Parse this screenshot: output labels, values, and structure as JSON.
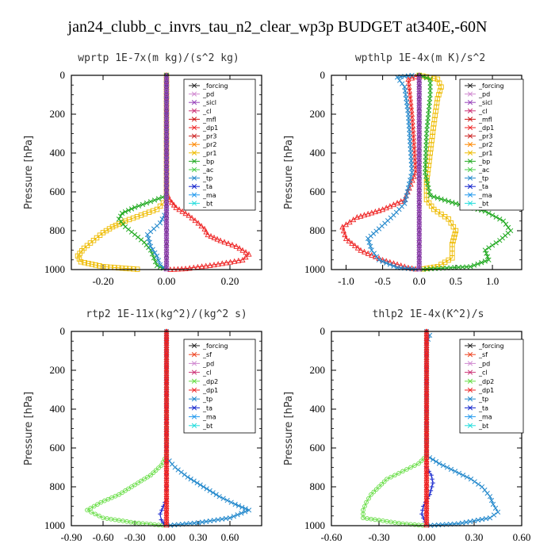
{
  "title": "jan24_clubb_c_invrs_tau_n2_clear_wp3p  BUDGET at340E,-60N",
  "chart_data": [
    {
      "type": "line",
      "title": "wprtp   1E-7x(m kg)/(s^2 kg)",
      "ylabel": "Pressure [hPa]",
      "xlim": [
        -0.3,
        0.3
      ],
      "ylim": [
        1000,
        0
      ],
      "xticks": [
        -0.2,
        0.0,
        0.2
      ],
      "yticks": [
        0,
        200,
        400,
        600,
        800,
        1000
      ],
      "legend": [
        "_forcing",
        "_pd",
        "_sicl",
        "_cl",
        "_mfl",
        "_dp1",
        "_pr3",
        "_pr2",
        "_pr1",
        "_bp",
        "_ac",
        "_tp",
        "_ta",
        "_ma",
        "_bt"
      ],
      "series": [
        {
          "name": "_dp1",
          "color": "#ee2222",
          "marker": "tri",
          "points": [
            [
              0.0,
              0
            ],
            [
              0.0,
              600
            ],
            [
              0.01,
              640
            ],
            [
              0.03,
              680
            ],
            [
              0.07,
              720
            ],
            [
              0.1,
              760
            ],
            [
              0.12,
              790
            ],
            [
              0.13,
              820
            ],
            [
              0.17,
              850
            ],
            [
              0.22,
              880
            ],
            [
              0.26,
              920
            ],
            [
              0.24,
              950
            ],
            [
              0.15,
              975
            ],
            [
              0.06,
              995
            ],
            [
              0.0,
              1000
            ]
          ]
        },
        {
          "name": "_pr1",
          "color": "#eebb00",
          "marker": "sq",
          "points": [
            [
              0.0,
              0
            ],
            [
              0.0,
              640
            ],
            [
              -0.03,
              690
            ],
            [
              -0.08,
              720
            ],
            [
              -0.13,
              750
            ],
            [
              -0.17,
              780
            ],
            [
              -0.2,
              810
            ],
            [
              -0.23,
              850
            ],
            [
              -0.26,
              890
            ],
            [
              -0.28,
              930
            ],
            [
              -0.27,
              960
            ],
            [
              -0.2,
              985
            ],
            [
              -0.08,
              1000
            ]
          ]
        },
        {
          "name": "_bp",
          "color": "#22aa22",
          "marker": "x",
          "points": [
            [
              0.0,
              0
            ],
            [
              0.0,
              620
            ],
            [
              -0.05,
              650
            ],
            [
              -0.1,
              680
            ],
            [
              -0.14,
              710
            ],
            [
              -0.15,
              740
            ],
            [
              -0.13,
              780
            ],
            [
              -0.1,
              820
            ],
            [
              -0.07,
              860
            ],
            [
              -0.05,
              900
            ],
            [
              -0.04,
              940
            ],
            [
              -0.03,
              980
            ],
            [
              0.0,
              1000
            ]
          ]
        },
        {
          "name": "_tp",
          "color": "#2288cc",
          "marker": "x",
          "points": [
            [
              0.0,
              0
            ],
            [
              0.0,
              700
            ],
            [
              -0.02,
              760
            ],
            [
              -0.06,
              820
            ],
            [
              -0.05,
              880
            ],
            [
              -0.03,
              930
            ],
            [
              -0.02,
              975
            ],
            [
              0.0,
              1000
            ]
          ]
        },
        {
          "name": "_forcing",
          "color": "#222222",
          "marker": "circ",
          "points": [
            [
              0.0,
              0
            ],
            [
              0.0,
              1000
            ]
          ]
        }
      ]
    },
    {
      "type": "line",
      "title": "wpthlp   1E-4x(m K)/s^2",
      "ylabel": "Pressure [hPa]",
      "xlim": [
        -1.2,
        1.4
      ],
      "ylim": [
        1000,
        0
      ],
      "xticks": [
        -1.0,
        -0.5,
        0.0,
        0.5,
        1.0
      ],
      "yticks": [
        0,
        200,
        400,
        600,
        800,
        1000
      ],
      "legend": [
        "_forcing",
        "_pd",
        "_sicl",
        "_cl",
        "_mfl",
        "_dp1",
        "_pr3",
        "_pr2",
        "_pr1",
        "_bp",
        "_ac",
        "_tp",
        "_ta",
        "_ma",
        "_bt"
      ],
      "series": [
        {
          "name": "_pr1",
          "color": "#eebb00",
          "marker": "sq",
          "points": [
            [
              0.0,
              0
            ],
            [
              0.25,
              20
            ],
            [
              0.3,
              60
            ],
            [
              0.25,
              120
            ],
            [
              0.2,
              250
            ],
            [
              0.15,
              400
            ],
            [
              0.1,
              550
            ],
            [
              0.1,
              640
            ],
            [
              0.2,
              690
            ],
            [
              0.4,
              740
            ],
            [
              0.5,
              800
            ],
            [
              0.45,
              870
            ],
            [
              0.45,
              940
            ],
            [
              0.25,
              985
            ],
            [
              0.0,
              1000
            ]
          ]
        },
        {
          "name": "_bp",
          "color": "#22aa22",
          "marker": "x",
          "points": [
            [
              0.0,
              0
            ],
            [
              0.15,
              20
            ],
            [
              0.15,
              100
            ],
            [
              0.1,
              300
            ],
            [
              0.08,
              500
            ],
            [
              0.15,
              620
            ],
            [
              0.5,
              660
            ],
            [
              0.9,
              700
            ],
            [
              1.15,
              750
            ],
            [
              1.25,
              800
            ],
            [
              1.1,
              850
            ],
            [
              0.9,
              900
            ],
            [
              0.95,
              950
            ],
            [
              0.7,
              985
            ],
            [
              0.0,
              1000
            ]
          ]
        },
        {
          "name": "_dp1",
          "color": "#ee2222",
          "marker": "tri",
          "points": [
            [
              0.0,
              0
            ],
            [
              -0.15,
              20
            ],
            [
              -0.1,
              200
            ],
            [
              -0.05,
              500
            ],
            [
              -0.2,
              640
            ],
            [
              -0.5,
              690
            ],
            [
              -0.85,
              730
            ],
            [
              -1.05,
              780
            ],
            [
              -1.0,
              840
            ],
            [
              -0.8,
              900
            ],
            [
              -0.5,
              950
            ],
            [
              -0.15,
              990
            ],
            [
              0.0,
              1000
            ]
          ]
        },
        {
          "name": "_tp",
          "color": "#2288cc",
          "marker": "x",
          "points": [
            [
              -0.1,
              0
            ],
            [
              -0.3,
              10
            ],
            [
              -0.2,
              60
            ],
            [
              -0.15,
              200
            ],
            [
              -0.1,
              500
            ],
            [
              -0.2,
              660
            ],
            [
              -0.35,
              720
            ],
            [
              -0.55,
              790
            ],
            [
              -0.7,
              840
            ],
            [
              -0.65,
              900
            ],
            [
              -0.55,
              950
            ],
            [
              -0.3,
              990
            ],
            [
              0.0,
              1000
            ]
          ]
        },
        {
          "name": "_forcing",
          "color": "#222222",
          "marker": "circ",
          "points": [
            [
              0.0,
              0
            ],
            [
              0.0,
              1000
            ]
          ]
        }
      ]
    },
    {
      "type": "line",
      "title": "rtp2   1E-11x(kg^2)/(kg^2 s)",
      "ylabel": "Pressure [hPa]",
      "xlim": [
        -0.9,
        0.9
      ],
      "ylim": [
        1000,
        0
      ],
      "xticks": [
        -0.9,
        -0.6,
        -0.3,
        0.0,
        0.3,
        0.6
      ],
      "xticklabels": [
        "-0.90",
        "-0.60",
        "-0.30",
        "0.00",
        "0.30",
        "0.60"
      ],
      "yticks": [
        0,
        200,
        400,
        600,
        800,
        1000
      ],
      "legend": [
        "_forcing",
        "_sf",
        "_pd",
        "_cl",
        "_dp2",
        "_dp1",
        "_tp",
        "_ta",
        "_ma",
        "_bt"
      ],
      "series": [
        {
          "name": "_dp1",
          "color": "#66dd44",
          "marker": "circ",
          "points": [
            [
              0.0,
              0
            ],
            [
              0.0,
              640
            ],
            [
              -0.05,
              690
            ],
            [
              -0.15,
              740
            ],
            [
              -0.3,
              790
            ],
            [
              -0.45,
              840
            ],
            [
              -0.62,
              880
            ],
            [
              -0.75,
              920
            ],
            [
              -0.6,
              960
            ],
            [
              -0.3,
              985
            ],
            [
              0.0,
              1000
            ]
          ]
        },
        {
          "name": "_tp",
          "color": "#2288cc",
          "marker": "x",
          "points": [
            [
              0.0,
              0
            ],
            [
              0.0,
              650
            ],
            [
              0.08,
              700
            ],
            [
              0.2,
              750
            ],
            [
              0.35,
              800
            ],
            [
              0.5,
              850
            ],
            [
              0.65,
              890
            ],
            [
              0.78,
              920
            ],
            [
              0.6,
              960
            ],
            [
              0.3,
              985
            ],
            [
              0.0,
              1000
            ]
          ]
        },
        {
          "name": "_ta",
          "color": "#1122cc",
          "marker": "plus",
          "points": [
            [
              0.0,
              0
            ],
            [
              0.0,
              860
            ],
            [
              -0.03,
              900
            ],
            [
              -0.06,
              940
            ],
            [
              -0.05,
              970
            ],
            [
              -0.01,
              1000
            ]
          ]
        },
        {
          "name": "_forcing",
          "color": "#ee2222",
          "marker": "circ",
          "points": [
            [
              0.0,
              0
            ],
            [
              0.0,
              1000
            ]
          ]
        }
      ]
    },
    {
      "type": "line",
      "title": "thlp2   1E-4x(K^2)/s",
      "ylabel": "Pressure [hPa]",
      "xlim": [
        -0.6,
        0.6
      ],
      "ylim": [
        1000,
        0
      ],
      "xticks": [
        -0.6,
        -0.3,
        0.0,
        0.3,
        0.6
      ],
      "xticklabels": [
        "-0.60",
        "-0.30",
        "0.00",
        "0.30",
        "0.60"
      ],
      "yticks": [
        0,
        200,
        400,
        600,
        800,
        1000
      ],
      "legend": [
        "_forcing",
        "_sf",
        "_pd",
        "_cl",
        "_dp2",
        "_dp1",
        "_tp",
        "_ta",
        "_ma",
        "_bt"
      ],
      "series": [
        {
          "name": "_dp1",
          "color": "#66dd44",
          "marker": "circ",
          "points": [
            [
              0.0,
              0
            ],
            [
              0.0,
              640
            ],
            [
              -0.05,
              680
            ],
            [
              -0.15,
              720
            ],
            [
              -0.25,
              760
            ],
            [
              -0.3,
              800
            ],
            [
              -0.35,
              840
            ],
            [
              -0.38,
              880
            ],
            [
              -0.4,
              920
            ],
            [
              -0.4,
              960
            ],
            [
              -0.15,
              990
            ],
            [
              0.0,
              1000
            ]
          ]
        },
        {
          "name": "_tp",
          "color": "#2288cc",
          "marker": "x",
          "points": [
            [
              0.0,
              0
            ],
            [
              0.02,
              20
            ],
            [
              0.0,
              60
            ],
            [
              0.0,
              640
            ],
            [
              0.08,
              680
            ],
            [
              0.18,
              720
            ],
            [
              0.28,
              760
            ],
            [
              0.35,
              800
            ],
            [
              0.4,
              850
            ],
            [
              0.42,
              890
            ],
            [
              0.45,
              930
            ],
            [
              0.4,
              960
            ],
            [
              0.2,
              990
            ],
            [
              0.0,
              1000
            ]
          ]
        },
        {
          "name": "_ta",
          "color": "#1122cc",
          "marker": "plus",
          "points": [
            [
              0.0,
              0
            ],
            [
              0.0,
              700
            ],
            [
              0.03,
              740
            ],
            [
              0.04,
              780
            ],
            [
              0.02,
              840
            ],
            [
              -0.02,
              900
            ],
            [
              -0.03,
              940
            ],
            [
              -0.01,
              980
            ],
            [
              0.0,
              1000
            ]
          ]
        },
        {
          "name": "_forcing",
          "color": "#ee2222",
          "marker": "circ",
          "points": [
            [
              0.0,
              0
            ],
            [
              0.0,
              1000
            ]
          ]
        }
      ]
    }
  ],
  "legend_colors": {
    "_forcing": "#222222",
    "_pd": "#d088d0",
    "_sicl": "#9944bb",
    "_cl": "#cc3377",
    "_mfl": "#cc1111",
    "_dp1": "#ee2222",
    "_pr3": "#cc2222",
    "_pr2": "#ff8800",
    "_pr1": "#eebb00",
    "_bp": "#22aa22",
    "_ac": "#44cc44",
    "_tp": "#2288cc",
    "_ta": "#1122cc",
    "_ma": "#2299ee",
    "_bt": "#22dddd",
    "_sf": "#ee4422",
    "_dp2": "#66dd44"
  }
}
